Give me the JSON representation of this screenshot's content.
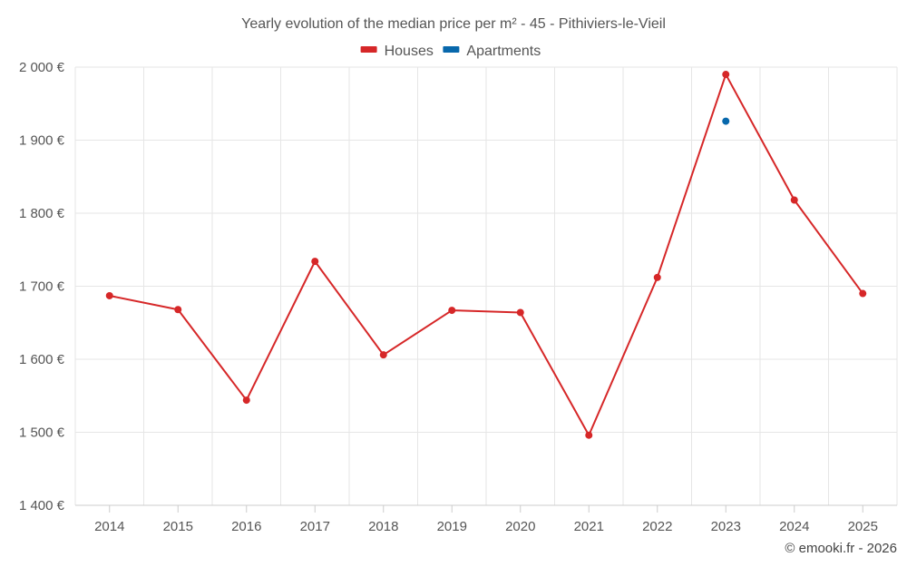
{
  "chart_data": {
    "type": "line",
    "title": "Yearly evolution of the median price per m² - 45 - Pithiviers-le-Vieil",
    "categories": [
      "2014",
      "2015",
      "2016",
      "2017",
      "2018",
      "2019",
      "2020",
      "2021",
      "2022",
      "2023",
      "2024",
      "2025"
    ],
    "series": [
      {
        "name": "Houses",
        "color": "#d62728",
        "values": [
          1687,
          1668,
          1544,
          1734,
          1606,
          1667,
          1664,
          1496,
          1712,
          1990,
          1818,
          1690
        ]
      },
      {
        "name": "Apartments",
        "color": "#0868ac",
        "values": [
          null,
          null,
          null,
          null,
          null,
          null,
          null,
          null,
          null,
          1926,
          null,
          null
        ]
      }
    ],
    "ylim": [
      1400,
      2000
    ],
    "yticks": [
      1400,
      1500,
      1600,
      1700,
      1800,
      1900,
      2000
    ],
    "ytick_labels": [
      "1 400 €",
      "1 500 €",
      "1 600 €",
      "1 700 €",
      "1 800 €",
      "1 900 €",
      "2 000 €"
    ],
    "xlabel": "",
    "ylabel": "",
    "grid": true,
    "legend_position": "top-center"
  },
  "credit": "© emooki.fr - 2026"
}
